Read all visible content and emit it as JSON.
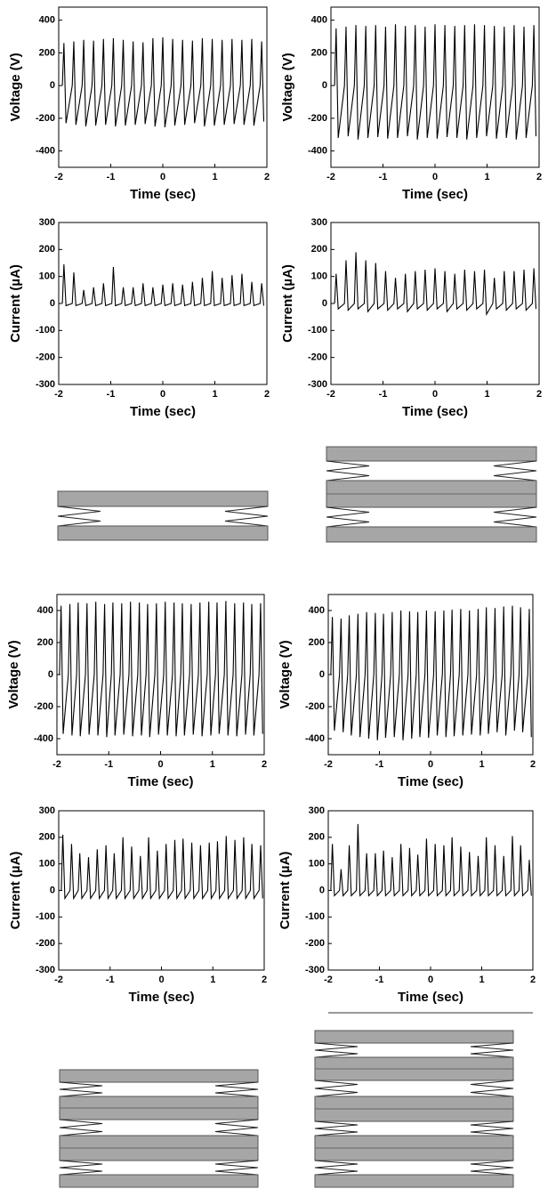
{
  "chart_data": [
    {
      "type": "line",
      "xlabel": "Time (sec)",
      "ylabel": "Voltage (V)",
      "color": "#000000",
      "xlim": [
        -2,
        2
      ],
      "xticks": [
        -2,
        -1,
        0,
        1,
        2
      ],
      "ylim": [
        -500,
        480
      ],
      "yticks": [
        -400,
        -200,
        0,
        200,
        400
      ],
      "x": [
        -1.93,
        -1.9,
        -1.86,
        -1.74,
        -1.71,
        -1.67,
        -1.55,
        -1.52,
        -1.48,
        -1.36,
        -1.33,
        -1.29,
        -1.17,
        -1.14,
        -1.1,
        -0.98,
        -0.95,
        -0.91,
        -0.79,
        -0.76,
        -0.72,
        -0.6,
        -0.57,
        -0.53,
        -0.41,
        -0.38,
        -0.34,
        -0.22,
        -0.19,
        -0.15,
        -0.03,
        0,
        0.04,
        0.16,
        0.19,
        0.23,
        0.35,
        0.38,
        0.42,
        0.54,
        0.57,
        0.61,
        0.73,
        0.76,
        0.8,
        0.92,
        0.95,
        0.99,
        1.11,
        1.14,
        1.18,
        1.3,
        1.33,
        1.37,
        1.49,
        1.52,
        1.56,
        1.68,
        1.71,
        1.75,
        1.87,
        1.9,
        1.94
      ],
      "values": [
        0,
        260,
        -230,
        0,
        270,
        -240,
        0,
        280,
        -250,
        0,
        275,
        -245,
        0,
        285,
        -240,
        0,
        290,
        -250,
        0,
        280,
        -245,
        0,
        270,
        -240,
        0,
        265,
        -235,
        0,
        290,
        -250,
        0,
        295,
        -255,
        0,
        285,
        -245,
        0,
        280,
        -240,
        0,
        275,
        -230,
        0,
        290,
        -250,
        0,
        285,
        -245,
        0,
        280,
        -240,
        0,
        285,
        -235,
        0,
        280,
        -240,
        0,
        285,
        -245,
        0,
        270,
        -220
      ]
    },
    {
      "type": "line",
      "xlabel": "Time (sec)",
      "ylabel": "Voltage (V)",
      "color": "#000000",
      "xlim": [
        -2,
        2
      ],
      "xticks": [
        -2,
        -1,
        0,
        1,
        2
      ],
      "ylim": [
        -500,
        480
      ],
      "yticks": [
        -400,
        -200,
        0,
        200,
        400
      ],
      "x": [
        -1.93,
        -1.9,
        -1.86,
        -1.74,
        -1.71,
        -1.67,
        -1.55,
        -1.52,
        -1.48,
        -1.36,
        -1.33,
        -1.29,
        -1.17,
        -1.14,
        -1.1,
        -0.98,
        -0.95,
        -0.91,
        -0.79,
        -0.76,
        -0.72,
        -0.6,
        -0.57,
        -0.53,
        -0.41,
        -0.38,
        -0.34,
        -0.22,
        -0.19,
        -0.15,
        -0.03,
        0,
        0.04,
        0.16,
        0.19,
        0.23,
        0.35,
        0.38,
        0.42,
        0.54,
        0.57,
        0.61,
        0.73,
        0.76,
        0.8,
        0.92,
        0.95,
        0.99,
        1.11,
        1.14,
        1.18,
        1.3,
        1.33,
        1.37,
        1.49,
        1.52,
        1.56,
        1.68,
        1.71,
        1.75,
        1.87,
        1.9,
        1.94
      ],
      "values": [
        0,
        350,
        -320,
        0,
        360,
        -310,
        0,
        370,
        -330,
        0,
        365,
        -320,
        0,
        370,
        -315,
        0,
        360,
        -325,
        0,
        375,
        -320,
        0,
        365,
        -310,
        0,
        370,
        -330,
        0,
        360,
        -320,
        0,
        375,
        -325,
        0,
        370,
        -315,
        0,
        365,
        -320,
        0,
        370,
        -330,
        0,
        375,
        -320,
        0,
        370,
        -310,
        0,
        365,
        -325,
        0,
        360,
        -320,
        0,
        370,
        -330,
        0,
        360,
        -320,
        0,
        370,
        -310
      ]
    },
    {
      "type": "line",
      "xlabel": "Time (sec)",
      "ylabel": "Current (µA)",
      "color": "#000000",
      "xlim": [
        -2,
        2
      ],
      "xticks": [
        -2,
        -1,
        0,
        1,
        2
      ],
      "ylim": [
        -300,
        300
      ],
      "yticks": [
        -300,
        -200,
        -100,
        0,
        100,
        200,
        300
      ],
      "x": [
        -1.93,
        -1.9,
        -1.86,
        -1.74,
        -1.71,
        -1.67,
        -1.55,
        -1.52,
        -1.48,
        -1.36,
        -1.33,
        -1.29,
        -1.17,
        -1.14,
        -1.1,
        -0.98,
        -0.95,
        -0.91,
        -0.79,
        -0.76,
        -0.72,
        -0.6,
        -0.57,
        -0.53,
        -0.41,
        -0.38,
        -0.34,
        -0.22,
        -0.19,
        -0.15,
        -0.03,
        0,
        0.04,
        0.16,
        0.19,
        0.23,
        0.35,
        0.38,
        0.42,
        0.54,
        0.57,
        0.61,
        0.73,
        0.76,
        0.8,
        0.92,
        0.95,
        0.99,
        1.11,
        1.14,
        1.18,
        1.3,
        1.33,
        1.37,
        1.49,
        1.52,
        1.56,
        1.68,
        1.71,
        1.75,
        1.87,
        1.9,
        1.94
      ],
      "values": [
        0,
        145,
        -8,
        0,
        115,
        -8,
        0,
        50,
        -8,
        0,
        60,
        -8,
        0,
        75,
        -8,
        0,
        135,
        -8,
        0,
        60,
        -8,
        0,
        60,
        -8,
        0,
        75,
        -8,
        0,
        60,
        -8,
        0,
        70,
        -8,
        0,
        75,
        -8,
        0,
        70,
        -8,
        0,
        80,
        -8,
        0,
        95,
        -8,
        0,
        120,
        -8,
        0,
        95,
        -8,
        0,
        105,
        -8,
        0,
        110,
        -8,
        0,
        80,
        -8,
        0,
        75,
        -8
      ]
    },
    {
      "type": "line",
      "xlabel": "Time (sec)",
      "ylabel": "Current (µA)",
      "color": "#000000",
      "xlim": [
        -2,
        2
      ],
      "xticks": [
        -2,
        -1,
        0,
        1,
        2
      ],
      "ylim": [
        -300,
        300
      ],
      "yticks": [
        -300,
        -200,
        -100,
        0,
        100,
        200,
        300
      ],
      "x": [
        -1.93,
        -1.9,
        -1.86,
        -1.74,
        -1.71,
        -1.67,
        -1.55,
        -1.52,
        -1.48,
        -1.36,
        -1.33,
        -1.29,
        -1.17,
        -1.14,
        -1.1,
        -0.98,
        -0.95,
        -0.91,
        -0.79,
        -0.76,
        -0.72,
        -0.6,
        -0.57,
        -0.53,
        -0.41,
        -0.38,
        -0.34,
        -0.22,
        -0.19,
        -0.15,
        -0.03,
        0,
        0.04,
        0.16,
        0.19,
        0.23,
        0.35,
        0.38,
        0.42,
        0.54,
        0.57,
        0.61,
        0.73,
        0.76,
        0.8,
        0.92,
        0.95,
        0.99,
        1.11,
        1.14,
        1.18,
        1.3,
        1.33,
        1.37,
        1.49,
        1.52,
        1.56,
        1.68,
        1.71,
        1.75,
        1.87,
        1.9,
        1.94
      ],
      "values": [
        0,
        110,
        -20,
        0,
        160,
        -25,
        0,
        190,
        -20,
        0,
        160,
        -30,
        0,
        150,
        -20,
        0,
        120,
        -25,
        0,
        95,
        -20,
        0,
        110,
        -30,
        0,
        120,
        -20,
        0,
        125,
        -25,
        0,
        130,
        -20,
        0,
        120,
        -30,
        0,
        110,
        -20,
        0,
        125,
        -25,
        0,
        120,
        -20,
        0,
        125,
        -40,
        0,
        95,
        -20,
        0,
        120,
        -25,
        0,
        120,
        -20,
        0,
        125,
        -25,
        0,
        130,
        -20
      ]
    },
    {
      "type": "line",
      "xlabel": "Time (sec)",
      "ylabel": "Voltage (V)",
      "color": "#000000",
      "xlim": [
        -2,
        2
      ],
      "xticks": [
        -2,
        -1,
        0,
        1,
        2
      ],
      "ylim": [
        -500,
        500
      ],
      "yticks": [
        -400,
        -200,
        0,
        200,
        400
      ],
      "x": [
        -1.95,
        -1.92,
        -1.88,
        -1.78,
        -1.75,
        -1.71,
        -1.62,
        -1.59,
        -1.55,
        -1.45,
        -1.42,
        -1.38,
        -1.28,
        -1.25,
        -1.21,
        -1.11,
        -1.08,
        -1.04,
        -0.95,
        -0.92,
        -0.88,
        -0.78,
        -0.75,
        -0.71,
        -0.61,
        -0.58,
        -0.54,
        -0.44,
        -0.41,
        -0.37,
        -0.28,
        -0.25,
        -0.21,
        -0.11,
        -0.08,
        -0.04,
        0.06,
        0.09,
        0.13,
        0.23,
        0.26,
        0.3,
        0.39,
        0.42,
        0.46,
        0.56,
        0.59,
        0.63,
        0.73,
        0.76,
        0.8,
        0.9,
        0.93,
        0.97,
        1.06,
        1.09,
        1.13,
        1.23,
        1.26,
        1.3,
        1.4,
        1.43,
        1.47,
        1.57,
        1.6,
        1.64,
        1.73,
        1.76,
        1.8,
        1.9,
        1.93,
        1.97
      ],
      "values": [
        0,
        430,
        -370,
        0,
        440,
        -380,
        0,
        450,
        -385,
        0,
        445,
        -375,
        0,
        455,
        -380,
        0,
        440,
        -390,
        0,
        450,
        -380,
        0,
        445,
        -375,
        0,
        455,
        -385,
        0,
        450,
        -380,
        0,
        440,
        -390,
        0,
        445,
        -375,
        0,
        455,
        -380,
        0,
        450,
        -385,
        0,
        445,
        -380,
        0,
        440,
        -375,
        0,
        450,
        -385,
        0,
        455,
        -380,
        0,
        450,
        -370,
        0,
        460,
        -380,
        0,
        445,
        -385,
        0,
        450,
        -375,
        0,
        440,
        -380,
        0,
        445,
        -370
      ]
    },
    {
      "type": "line",
      "xlabel": "Time (sec)",
      "ylabel": "Voltage (V)",
      "color": "#000000",
      "xlim": [
        -2,
        2
      ],
      "xticks": [
        -2,
        -1,
        0,
        1,
        2
      ],
      "ylim": [
        -500,
        500
      ],
      "yticks": [
        -400,
        -200,
        0,
        200,
        400
      ],
      "x": [
        -1.95,
        -1.92,
        -1.88,
        -1.78,
        -1.75,
        -1.71,
        -1.62,
        -1.59,
        -1.55,
        -1.45,
        -1.42,
        -1.38,
        -1.28,
        -1.25,
        -1.21,
        -1.11,
        -1.08,
        -1.04,
        -0.95,
        -0.92,
        -0.88,
        -0.78,
        -0.75,
        -0.71,
        -0.61,
        -0.58,
        -0.54,
        -0.44,
        -0.41,
        -0.37,
        -0.28,
        -0.25,
        -0.21,
        -0.11,
        -0.08,
        -0.04,
        0.06,
        0.09,
        0.13,
        0.23,
        0.26,
        0.3,
        0.39,
        0.42,
        0.46,
        0.56,
        0.59,
        0.63,
        0.73,
        0.76,
        0.8,
        0.9,
        0.93,
        0.97,
        1.06,
        1.09,
        1.13,
        1.23,
        1.26,
        1.3,
        1.4,
        1.43,
        1.47,
        1.57,
        1.6,
        1.64,
        1.73,
        1.76,
        1.8,
        1.9,
        1.93,
        1.97
      ],
      "values": [
        0,
        360,
        -350,
        0,
        350,
        -360,
        0,
        370,
        -380,
        0,
        380,
        -390,
        0,
        390,
        -400,
        0,
        385,
        -410,
        0,
        380,
        -395,
        0,
        390,
        -390,
        0,
        400,
        -410,
        0,
        395,
        -400,
        0,
        390,
        -390,
        0,
        400,
        -395,
        0,
        395,
        -380,
        0,
        400,
        -390,
        0,
        405,
        -385,
        0,
        410,
        -380,
        0,
        400,
        -375,
        0,
        410,
        -380,
        0,
        420,
        -370,
        0,
        415,
        -360,
        0,
        425,
        -380,
        0,
        430,
        -350,
        0,
        420,
        -360,
        0,
        410,
        -390
      ]
    },
    {
      "type": "line",
      "xlabel": "Time (sec)",
      "ylabel": "Current (µA)",
      "color": "#000000",
      "xlim": [
        -2,
        2
      ],
      "xticks": [
        -2,
        -1,
        0,
        1,
        2
      ],
      "ylim": [
        -300,
        300
      ],
      "yticks": [
        -300,
        -200,
        -100,
        0,
        100,
        200,
        300
      ],
      "x": [
        -1.95,
        -1.92,
        -1.88,
        -1.78,
        -1.75,
        -1.71,
        -1.62,
        -1.59,
        -1.55,
        -1.45,
        -1.42,
        -1.38,
        -1.28,
        -1.25,
        -1.21,
        -1.11,
        -1.08,
        -1.04,
        -0.95,
        -0.92,
        -0.88,
        -0.78,
        -0.75,
        -0.71,
        -0.61,
        -0.58,
        -0.54,
        -0.44,
        -0.41,
        -0.37,
        -0.28,
        -0.25,
        -0.21,
        -0.11,
        -0.08,
        -0.04,
        0.06,
        0.09,
        0.13,
        0.23,
        0.26,
        0.3,
        0.39,
        0.42,
        0.46,
        0.56,
        0.59,
        0.63,
        0.73,
        0.76,
        0.8,
        0.9,
        0.93,
        0.97,
        1.06,
        1.09,
        1.13,
        1.23,
        1.26,
        1.3,
        1.4,
        1.43,
        1.47,
        1.57,
        1.6,
        1.64,
        1.73,
        1.76,
        1.8,
        1.9,
        1.93,
        1.97
      ],
      "values": [
        0,
        210,
        -30,
        0,
        175,
        -30,
        0,
        140,
        -30,
        0,
        125,
        -30,
        0,
        155,
        -30,
        0,
        170,
        -30,
        0,
        140,
        -30,
        0,
        200,
        -30,
        0,
        165,
        -30,
        0,
        130,
        -30,
        0,
        200,
        -30,
        0,
        150,
        -30,
        0,
        175,
        -30,
        0,
        190,
        -30,
        0,
        195,
        -30,
        0,
        180,
        -30,
        0,
        170,
        -30,
        0,
        180,
        -30,
        0,
        185,
        -30,
        0,
        205,
        -30,
        0,
        190,
        -30,
        0,
        200,
        -30,
        0,
        175,
        -30,
        0,
        170,
        -30
      ]
    },
    {
      "type": "line",
      "xlabel": "Time (sec)",
      "ylabel": "Current (µA)",
      "color": "#000000",
      "xlim": [
        -2,
        2
      ],
      "xticks": [
        -2,
        -1,
        0,
        1,
        2
      ],
      "ylim": [
        -300,
        300
      ],
      "yticks": [
        -300,
        -200,
        -100,
        0,
        100,
        200,
        300
      ],
      "x": [
        -1.95,
        -1.92,
        -1.88,
        -1.78,
        -1.75,
        -1.71,
        -1.62,
        -1.59,
        -1.55,
        -1.45,
        -1.42,
        -1.38,
        -1.28,
        -1.25,
        -1.21,
        -1.11,
        -1.08,
        -1.04,
        -0.95,
        -0.92,
        -0.88,
        -0.78,
        -0.75,
        -0.71,
        -0.61,
        -0.58,
        -0.54,
        -0.44,
        -0.41,
        -0.37,
        -0.28,
        -0.25,
        -0.21,
        -0.11,
        -0.08,
        -0.04,
        0.06,
        0.09,
        0.13,
        0.23,
        0.26,
        0.3,
        0.39,
        0.42,
        0.46,
        0.56,
        0.59,
        0.63,
        0.73,
        0.76,
        0.8,
        0.9,
        0.93,
        0.97,
        1.06,
        1.09,
        1.13,
        1.23,
        1.26,
        1.3,
        1.4,
        1.43,
        1.47,
        1.57,
        1.6,
        1.64,
        1.73,
        1.76,
        1.8,
        1.9,
        1.93,
        1.97
      ],
      "values": [
        0,
        175,
        -20,
        0,
        80,
        -20,
        0,
        170,
        -20,
        0,
        250,
        -20,
        0,
        140,
        -20,
        0,
        140,
        -20,
        0,
        150,
        -20,
        0,
        125,
        -20,
        0,
        175,
        -20,
        0,
        160,
        -20,
        0,
        135,
        -20,
        0,
        195,
        -20,
        0,
        175,
        -20,
        0,
        170,
        -20,
        0,
        200,
        -20,
        0,
        165,
        -20,
        0,
        145,
        -20,
        0,
        130,
        -20,
        0,
        200,
        -20,
        0,
        170,
        -20,
        0,
        130,
        -20,
        0,
        205,
        -20,
        0,
        170,
        -20,
        0,
        115,
        -20
      ]
    }
  ]
}
